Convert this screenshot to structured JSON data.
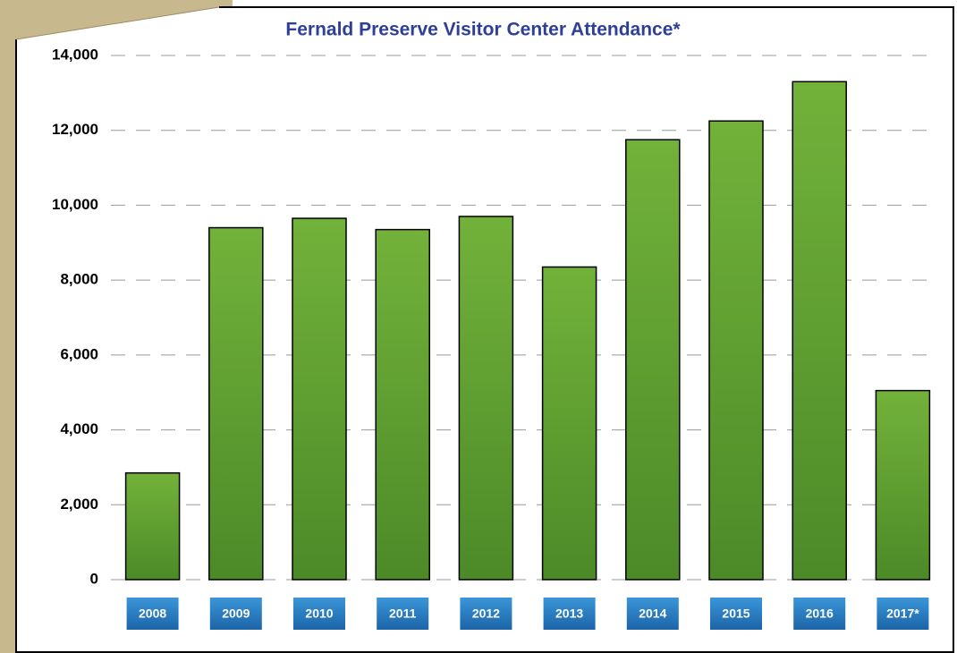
{
  "chart_data": {
    "type": "bar",
    "title": "Fernald Preserve Visitor Center Attendance*",
    "categories": [
      "2008",
      "2009",
      "2010",
      "2011",
      "2012",
      "2013",
      "2014",
      "2015",
      "2016",
      "2017*"
    ],
    "values": [
      2850,
      9400,
      9650,
      9350,
      9700,
      8350,
      11750,
      12250,
      13300,
      5050
    ],
    "color": "#5f9f2f",
    "ylim": [
      0,
      14000
    ],
    "yticks": [
      0,
      {
        "value": 2000,
        "label": "2,000"
      },
      {
        "value": 4000,
        "label": "4,000"
      },
      {
        "value": 6000,
        "label": "6,000"
      },
      {
        "value": 8000,
        "label": "8,000"
      },
      {
        "value": 10000,
        "label": "10,000"
      },
      {
        "value": 12000,
        "label": "12,000"
      },
      {
        "value": 14000,
        "label": "14,000"
      }
    ],
    "grid": true
  }
}
